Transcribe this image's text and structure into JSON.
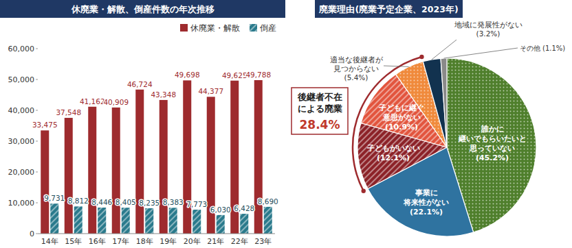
{
  "chart_data": [
    {
      "type": "bar",
      "title": "休廃業・解散、倒産件数の年次推移",
      "categories": [
        "14年",
        "15年",
        "16年",
        "17年",
        "18年",
        "19年",
        "20年",
        "21年",
        "22年",
        "23年"
      ],
      "series": [
        {
          "name": "休廃業・解散",
          "color": "#9e2b2e",
          "values": [
            33475,
            37548,
            41162,
            40909,
            46724,
            43348,
            49698,
            44377,
            49625,
            49788
          ],
          "value_labels": [
            "33,475",
            "37,548",
            "41,162",
            "40,909",
            "46,724",
            "43,348",
            "49,698",
            "44,377",
            "49,625",
            "49,788"
          ]
        },
        {
          "name": "倒産",
          "color": "#2a7a8c",
          "values": [
            9731,
            8812,
            8446,
            8405,
            8235,
            8383,
            7773,
            6030,
            6428,
            8690
          ],
          "value_labels": [
            "9,731",
            "8,812",
            "8,446",
            "8,405",
            "8,235",
            "8,383",
            "7,773",
            "6,030",
            "6,428",
            "8,690"
          ]
        }
      ],
      "ylim": [
        0,
        60000
      ],
      "yticks": [
        0,
        {
          "value": 10000,
          "label": "10,000"
        },
        {
          "value": 20000,
          "label": "20,000"
        },
        {
          "value": 30000,
          "label": "30,000"
        },
        {
          "value": 40000,
          "label": "40,000"
        },
        {
          "value": 50000,
          "label": "50,000"
        },
        {
          "value": 60000,
          "label": "60,000"
        }
      ],
      "grid": false,
      "legend": "top-right",
      "data_labels": true
    },
    {
      "type": "pie",
      "title": "廃業理由(廃業予定企業、2023年)",
      "categories": [
        "誰かに\n継いでもらいたいと\n思っていない",
        "事業に\n将来性がない",
        "子どもがいない",
        "子どもに継ぐ\n意思がない",
        "適当な後継者が\n見つからない",
        "地域に発展性がない",
        "その他"
      ],
      "values": [
        45.2,
        22.1,
        12.1,
        10.9,
        5.4,
        3.2,
        1.1
      ],
      "value_labels": [
        "(45.2%)",
        "(22.1%)",
        "(12.1%)",
        "(10.9%)",
        "(5.4%)",
        "(3.2%)",
        "(1.1%)"
      ],
      "colors": [
        "#4f7f2c",
        "#2f73a0",
        "#8c2228",
        "#e2553e",
        "#f08a3c",
        "#12324f",
        "#8a8a8a"
      ],
      "data_labels": true,
      "annotations": [
        {
          "text": "後継者不在\nによる廃業",
          "value": 28.4,
          "label": "28.4%"
        }
      ]
    }
  ]
}
